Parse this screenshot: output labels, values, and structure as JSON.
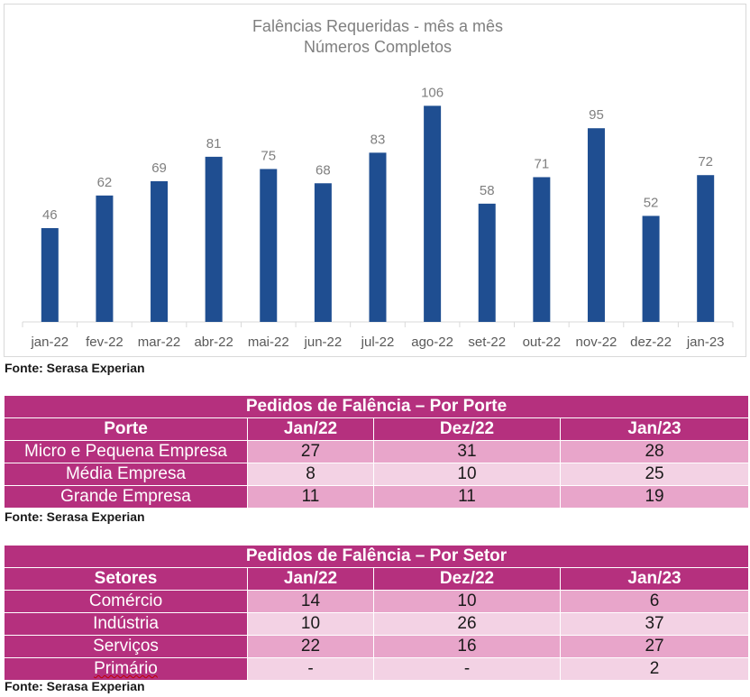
{
  "chart_data": {
    "type": "bar",
    "title": "Falências Requeridas - mês a mês",
    "subtitle": "Números Completos",
    "categories": [
      "jan-22",
      "fev-22",
      "mar-22",
      "abr-22",
      "mai-22",
      "jun-22",
      "jul-22",
      "ago-22",
      "set-22",
      "out-22",
      "nov-22",
      "dez-22",
      "jan-23"
    ],
    "values": [
      46,
      62,
      69,
      81,
      75,
      68,
      83,
      106,
      58,
      71,
      95,
      52,
      72
    ],
    "ylim": [
      0,
      115
    ],
    "bar_color": "#1f4e91",
    "grid": false,
    "legend": "none"
  },
  "chart_source": "Fonte: Serasa Experian",
  "table_porte": {
    "title": "Pedidos de Falência – Por Porte",
    "headers": [
      "Porte",
      "Jan/22",
      "Dez/22",
      "Jan/23"
    ],
    "rows": [
      {
        "label": "Micro e Pequena Empresa",
        "values": [
          "27",
          "31",
          "28"
        ]
      },
      {
        "label": "Média Empresa",
        "values": [
          "8",
          "10",
          "25"
        ]
      },
      {
        "label": "Grande Empresa",
        "values": [
          "11",
          "11",
          "19"
        ]
      }
    ],
    "source": "Fonte: Serasa Experian"
  },
  "table_setor": {
    "title": "Pedidos de Falência – Por Setor",
    "headers": [
      "Setores",
      "Jan/22",
      "Dez/22",
      "Jan/23"
    ],
    "rows": [
      {
        "label": "Comércio",
        "values": [
          "14",
          "10",
          "6"
        ]
      },
      {
        "label": "Indústria",
        "values": [
          "10",
          "26",
          "37"
        ]
      },
      {
        "label": "Serviços",
        "values": [
          "22",
          "16",
          "27"
        ]
      },
      {
        "label": "Primário",
        "values": [
          "-",
          "-",
          "2"
        ]
      }
    ],
    "source": "Fonte: Serasa Experian"
  },
  "colors": {
    "table_header": "#b5307e",
    "row_dark": "#e8a5ca",
    "row_light": "#f3d2e4",
    "bar": "#1f4e91"
  }
}
